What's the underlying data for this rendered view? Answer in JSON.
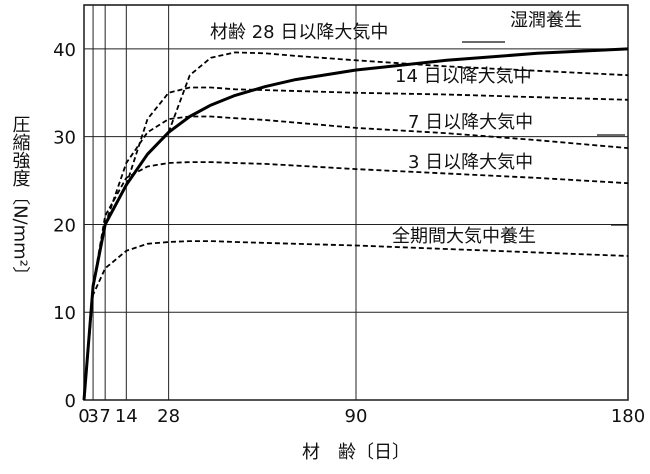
{
  "chart_data": {
    "type": "line",
    "xlabel": "材　齢〔日〕",
    "ylabel": "圧縮強度〔N/mm²〕",
    "x": [
      0,
      3,
      7,
      14,
      21,
      28,
      35,
      42,
      50,
      60,
      70,
      90,
      120,
      150,
      180
    ],
    "series": [
      {
        "name": "湿潤養生",
        "color": "#000000",
        "style": "solid",
        "values": [
          0,
          13,
          20,
          24.5,
          28,
          30.5,
          32.3,
          33.6,
          34.7,
          35.7,
          36.5,
          37.6,
          38.7,
          39.5,
          40
        ]
      },
      {
        "name": "材齢 28 日以降大気中",
        "color": "#000000",
        "style": "dashed",
        "values": [
          null,
          null,
          null,
          null,
          null,
          30.5,
          37,
          39,
          39.6,
          39.5,
          39.2,
          38.7,
          38,
          37.5,
          37
        ]
      },
      {
        "name": "14 日以降大気中",
        "color": "#000000",
        "style": "dashed",
        "values": [
          null,
          null,
          null,
          24.5,
          32,
          35,
          35.6,
          35.6,
          35.4,
          35.3,
          35.2,
          35,
          34.8,
          34.5,
          34.2
        ]
      },
      {
        "name": "7 日以降大気中",
        "color": "#000000",
        "style": "dashed",
        "values": [
          null,
          null,
          20,
          27,
          30.5,
          32,
          32.3,
          32.3,
          32.1,
          31.9,
          31.6,
          31,
          30.4,
          29.6,
          28.7
        ]
      },
      {
        "name": "3 日以降大気中",
        "color": "#000000",
        "style": "dashed",
        "values": [
          null,
          13,
          21,
          25.3,
          26.6,
          27,
          27.1,
          27.1,
          27,
          26.9,
          26.7,
          26.3,
          25.8,
          25.3,
          24.7
        ]
      },
      {
        "name": "全期間大気中養生",
        "color": "#000000",
        "style": "dashed",
        "values": [
          0,
          12,
          15,
          17,
          17.8,
          18,
          18.1,
          18.1,
          18,
          17.9,
          17.8,
          17.6,
          17.2,
          16.8,
          16.4
        ]
      }
    ],
    "xlim": [
      0,
      180
    ],
    "xticks": [
      0,
      3,
      7,
      14,
      28,
      90,
      180
    ],
    "ylim": [
      0,
      45
    ],
    "yticks": [
      0,
      10,
      20,
      30,
      40
    ],
    "grid": true
  }
}
